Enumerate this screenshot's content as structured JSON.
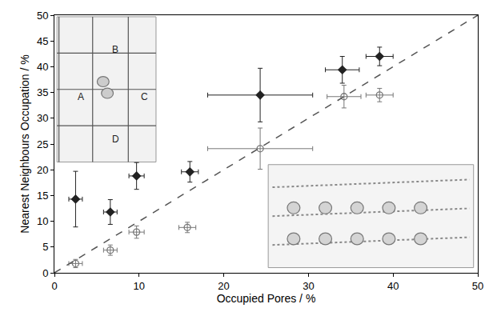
{
  "chart_data": {
    "type": "scatter",
    "x_label": "Occupied Pores / %",
    "y_label": "Nearest Neighbours Occupation / %",
    "xlim": [
      0,
      50
    ],
    "ylim": [
      0,
      50
    ],
    "xticks": [
      0,
      10,
      20,
      30,
      40,
      50
    ],
    "yticks": [
      0,
      5,
      10,
      15,
      20,
      25,
      30,
      35,
      40,
      45,
      50
    ],
    "grid": false,
    "annotations": [
      "A",
      "B",
      "C",
      "D"
    ],
    "series": [
      {
        "type": "scatter",
        "marker": "diamond",
        "color": "#222222",
        "x": [
          2.5,
          6.6,
          9.7,
          16.0,
          24.3,
          34.0,
          38.4
        ],
        "values": [
          14.3,
          11.8,
          18.8,
          19.6,
          34.5,
          39.4,
          42.0
        ],
        "x_error": [
          0.8,
          0.8,
          0.9,
          1.0,
          6.2,
          2.0,
          1.6
        ],
        "y_error": [
          5.4,
          2.4,
          2.6,
          2.0,
          5.2,
          2.6,
          1.8
        ]
      },
      {
        "type": "scatter",
        "marker": "circle-open",
        "color": "#777777",
        "x": [
          2.5,
          6.6,
          9.7,
          15.7,
          24.3,
          34.2,
          38.4
        ],
        "values": [
          1.8,
          4.4,
          7.9,
          8.8,
          24.1,
          34.2,
          34.5
        ],
        "x_error": [
          0.8,
          0.8,
          0.9,
          1.0,
          6.2,
          2.0,
          1.6
        ],
        "y_error": [
          0.8,
          1.0,
          1.2,
          1.0,
          4.0,
          2.2,
          1.3
        ]
      },
      {
        "type": "line",
        "line_style": "dashed",
        "color": "#555555",
        "x": [
          0,
          50
        ],
        "values": [
          0,
          50
        ]
      }
    ]
  }
}
